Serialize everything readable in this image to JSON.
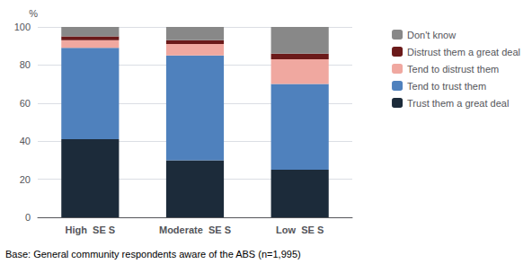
{
  "chart_data": {
    "type": "bar",
    "stacked": true,
    "categories": [
      "High  SE S",
      "Moderate  SE S",
      "Low  SE S"
    ],
    "series": [
      {
        "name": "Trust them a great deal",
        "color": "#1c2b3a",
        "values": [
          41,
          30,
          25
        ]
      },
      {
        "name": "Tend to trust them",
        "color": "#4f81bd",
        "values": [
          48,
          55,
          45
        ]
      },
      {
        "name": "Tend to distrust them",
        "color": "#f0a8a0",
        "values": [
          4,
          6,
          13
        ]
      },
      {
        "name": "Distrust them a great deal",
        "color": "#6b1a1a",
        "values": [
          2,
          2,
          3
        ]
      },
      {
        "name": "Don't know",
        "color": "#888888",
        "values": [
          5,
          7,
          14
        ]
      }
    ],
    "ylabel": "%",
    "ylim": [
      0,
      100
    ],
    "yticks": [
      0,
      20,
      40,
      60,
      80,
      100
    ],
    "grid": true,
    "legend": "right",
    "footnote": "Base: General community respondents aware of the ABS (n=1,995)"
  }
}
